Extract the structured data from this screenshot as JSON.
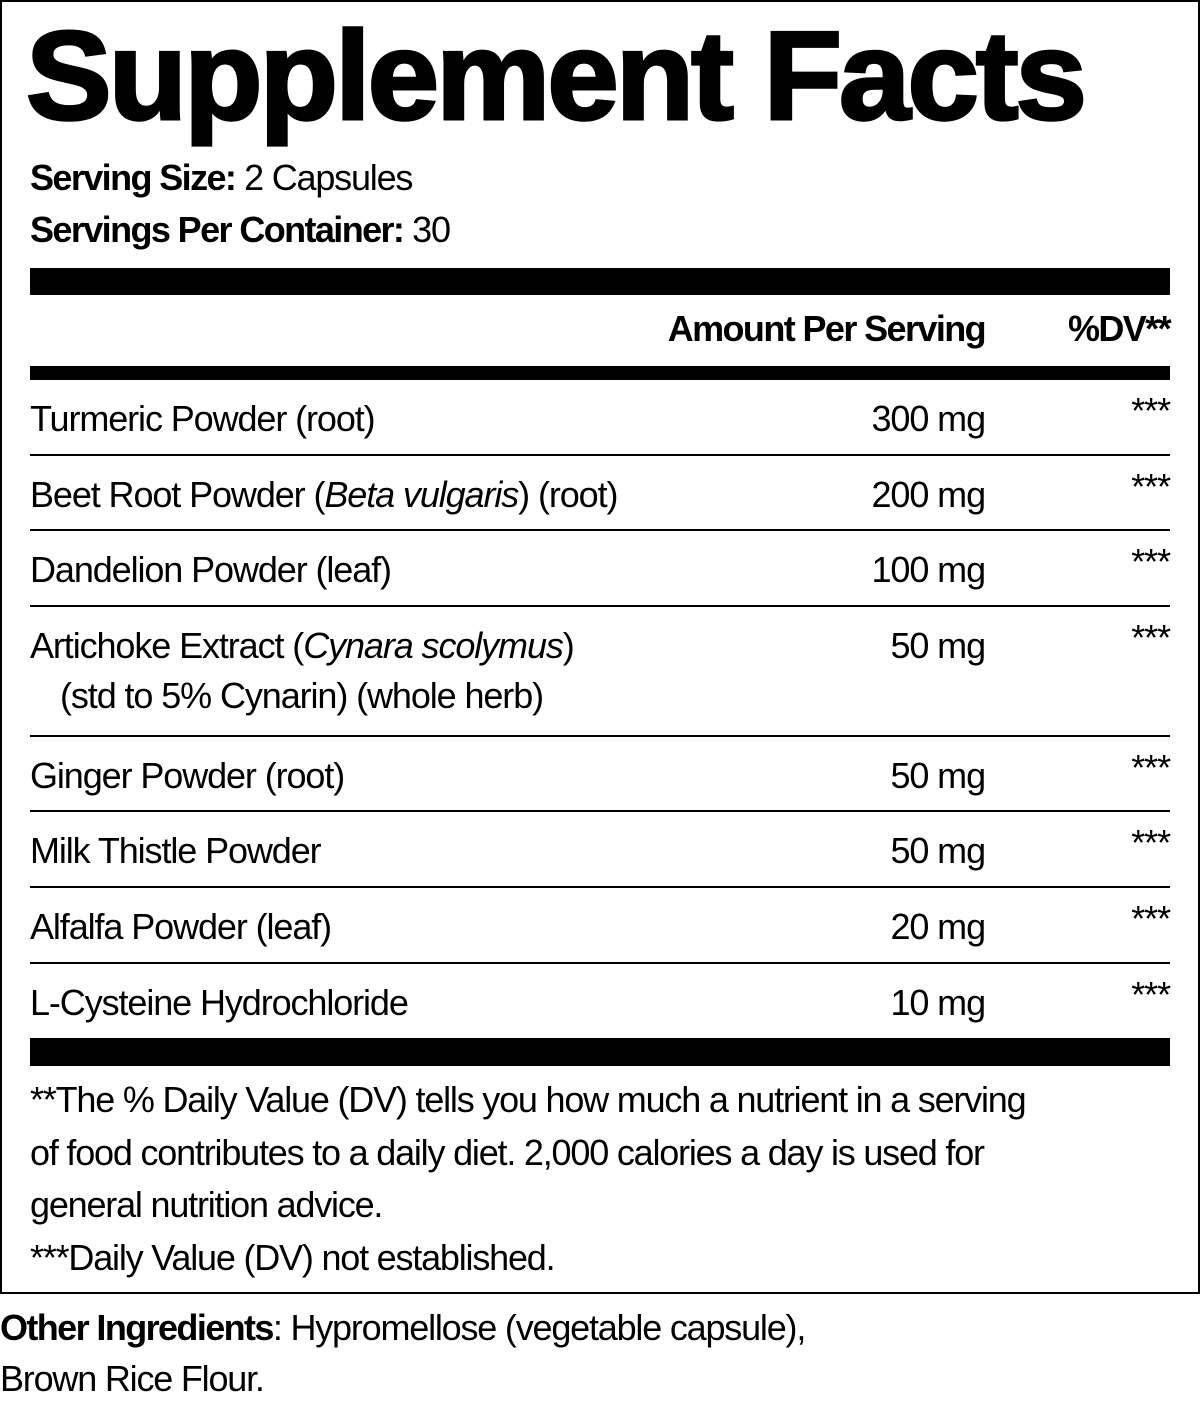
{
  "title": "Supplement Facts",
  "serving": {
    "size_label": "Serving Size:",
    "size_value": " 2 Capsules",
    "per_container_label": "Servings Per Container:",
    "per_container_value": " 30"
  },
  "header": {
    "amount": "Amount Per Serving",
    "dv": "%DV**"
  },
  "rows": [
    {
      "name": "Turmeric Powder (root)",
      "amount": "300 mg",
      "dv": "***"
    },
    {
      "name_pre": "Beet Root Powder (",
      "name_italic": "Beta vulgaris",
      "name_post": ") (root)",
      "amount": "200 mg",
      "dv": "***"
    },
    {
      "name": "Dandelion Powder (leaf)",
      "amount": "100 mg",
      "dv": "***"
    },
    {
      "name_pre": "Artichoke Extract (",
      "name_italic": "Cynara scolymus",
      "name_post": ")",
      "name_line2": "(std to 5% Cynarin) (whole herb)",
      "amount": "50 mg",
      "dv": "***"
    },
    {
      "name": "Ginger Powder (root)",
      "amount": "50 mg",
      "dv": "***"
    },
    {
      "name": "Milk Thistle Powder",
      "amount": "50 mg",
      "dv": "***"
    },
    {
      "name": "Alfalfa Powder (leaf)",
      "amount": "20 mg",
      "dv": "***"
    },
    {
      "name": "L-Cysteine Hydrochloride",
      "amount": "10 mg",
      "dv": "***"
    }
  ],
  "footnotes": [
    "**The % Daily Value (DV) tells you how much a nutrient in a serving",
    "of food contributes to a daily diet. 2,000 calories a day is used for",
    "general nutrition advice.",
    "***Daily Value (DV) not established."
  ],
  "other_ingredients": {
    "label": "Other Ingredients",
    "line1": ": Hypromellose (vegetable capsule),",
    "line2": "Brown Rice Flour."
  }
}
